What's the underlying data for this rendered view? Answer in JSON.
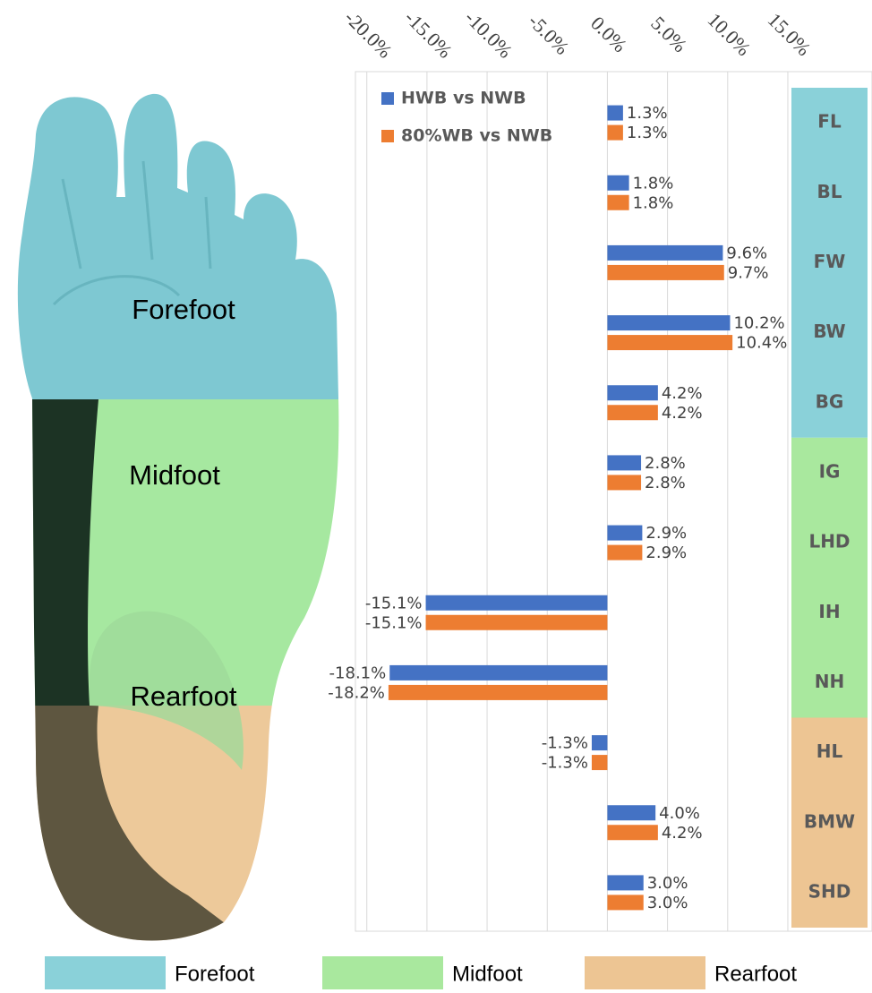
{
  "chart_data": {
    "type": "bar",
    "orientation": "horizontal",
    "groups": [
      {
        "name": "Forefoot",
        "color": "#8ad1d9",
        "categories": [
          "FL",
          "BL",
          "FW",
          "BW",
          "BG"
        ]
      },
      {
        "name": "Midfoot",
        "color": "#a9e89e",
        "categories": [
          "IG",
          "LHD",
          "IH",
          "NH"
        ]
      },
      {
        "name": "Rearfoot",
        "color": "#edc593",
        "categories": [
          "HL",
          "BMW",
          "SHD"
        ]
      }
    ],
    "series": [
      {
        "name": "HWB vs NWB",
        "color": "#4472c4",
        "values": [
          1.3,
          1.8,
          9.6,
          10.2,
          4.2,
          2.8,
          2.9,
          -15.1,
          -18.1,
          -1.3,
          4.0,
          3.0
        ],
        "value_labels": [
          "1.3%",
          "1.8%",
          "9.6%",
          "10.2%",
          "4.2%",
          "2.8%",
          "2.9%",
          "-15.1%",
          "-18.1%",
          "-1.3%",
          "4.0%",
          "3.0%"
        ]
      },
      {
        "name": "80%WB vs NWB",
        "color": "#ed7d31",
        "values": [
          1.3,
          1.8,
          9.7,
          10.4,
          4.2,
          2.8,
          2.9,
          -15.1,
          -18.2,
          -1.3,
          4.2,
          3.0
        ],
        "value_labels": [
          "1.3%",
          "1.8%",
          "9.7%",
          "10.4%",
          "4.2%",
          "2.8%",
          "2.9%",
          "-15.1%",
          "-18.2%",
          "-1.3%",
          "4.2%",
          "3.0%"
        ]
      }
    ],
    "xlim": [
      -20.5,
      15.3
    ],
    "xticks": [
      {
        "value": -20,
        "label": "-20.0%"
      },
      {
        "value": -15,
        "label": "-15.0%"
      },
      {
        "value": -10,
        "label": "-10.0%"
      },
      {
        "value": -5,
        "label": "-5.0%"
      },
      {
        "value": 0,
        "label": "0.0%"
      },
      {
        "value": 5,
        "label": "5.0%"
      },
      {
        "value": 10,
        "label": "10.0%"
      },
      {
        "value": 15,
        "label": "15.0%"
      }
    ],
    "grid": true,
    "legend": "upper left"
  }
}
